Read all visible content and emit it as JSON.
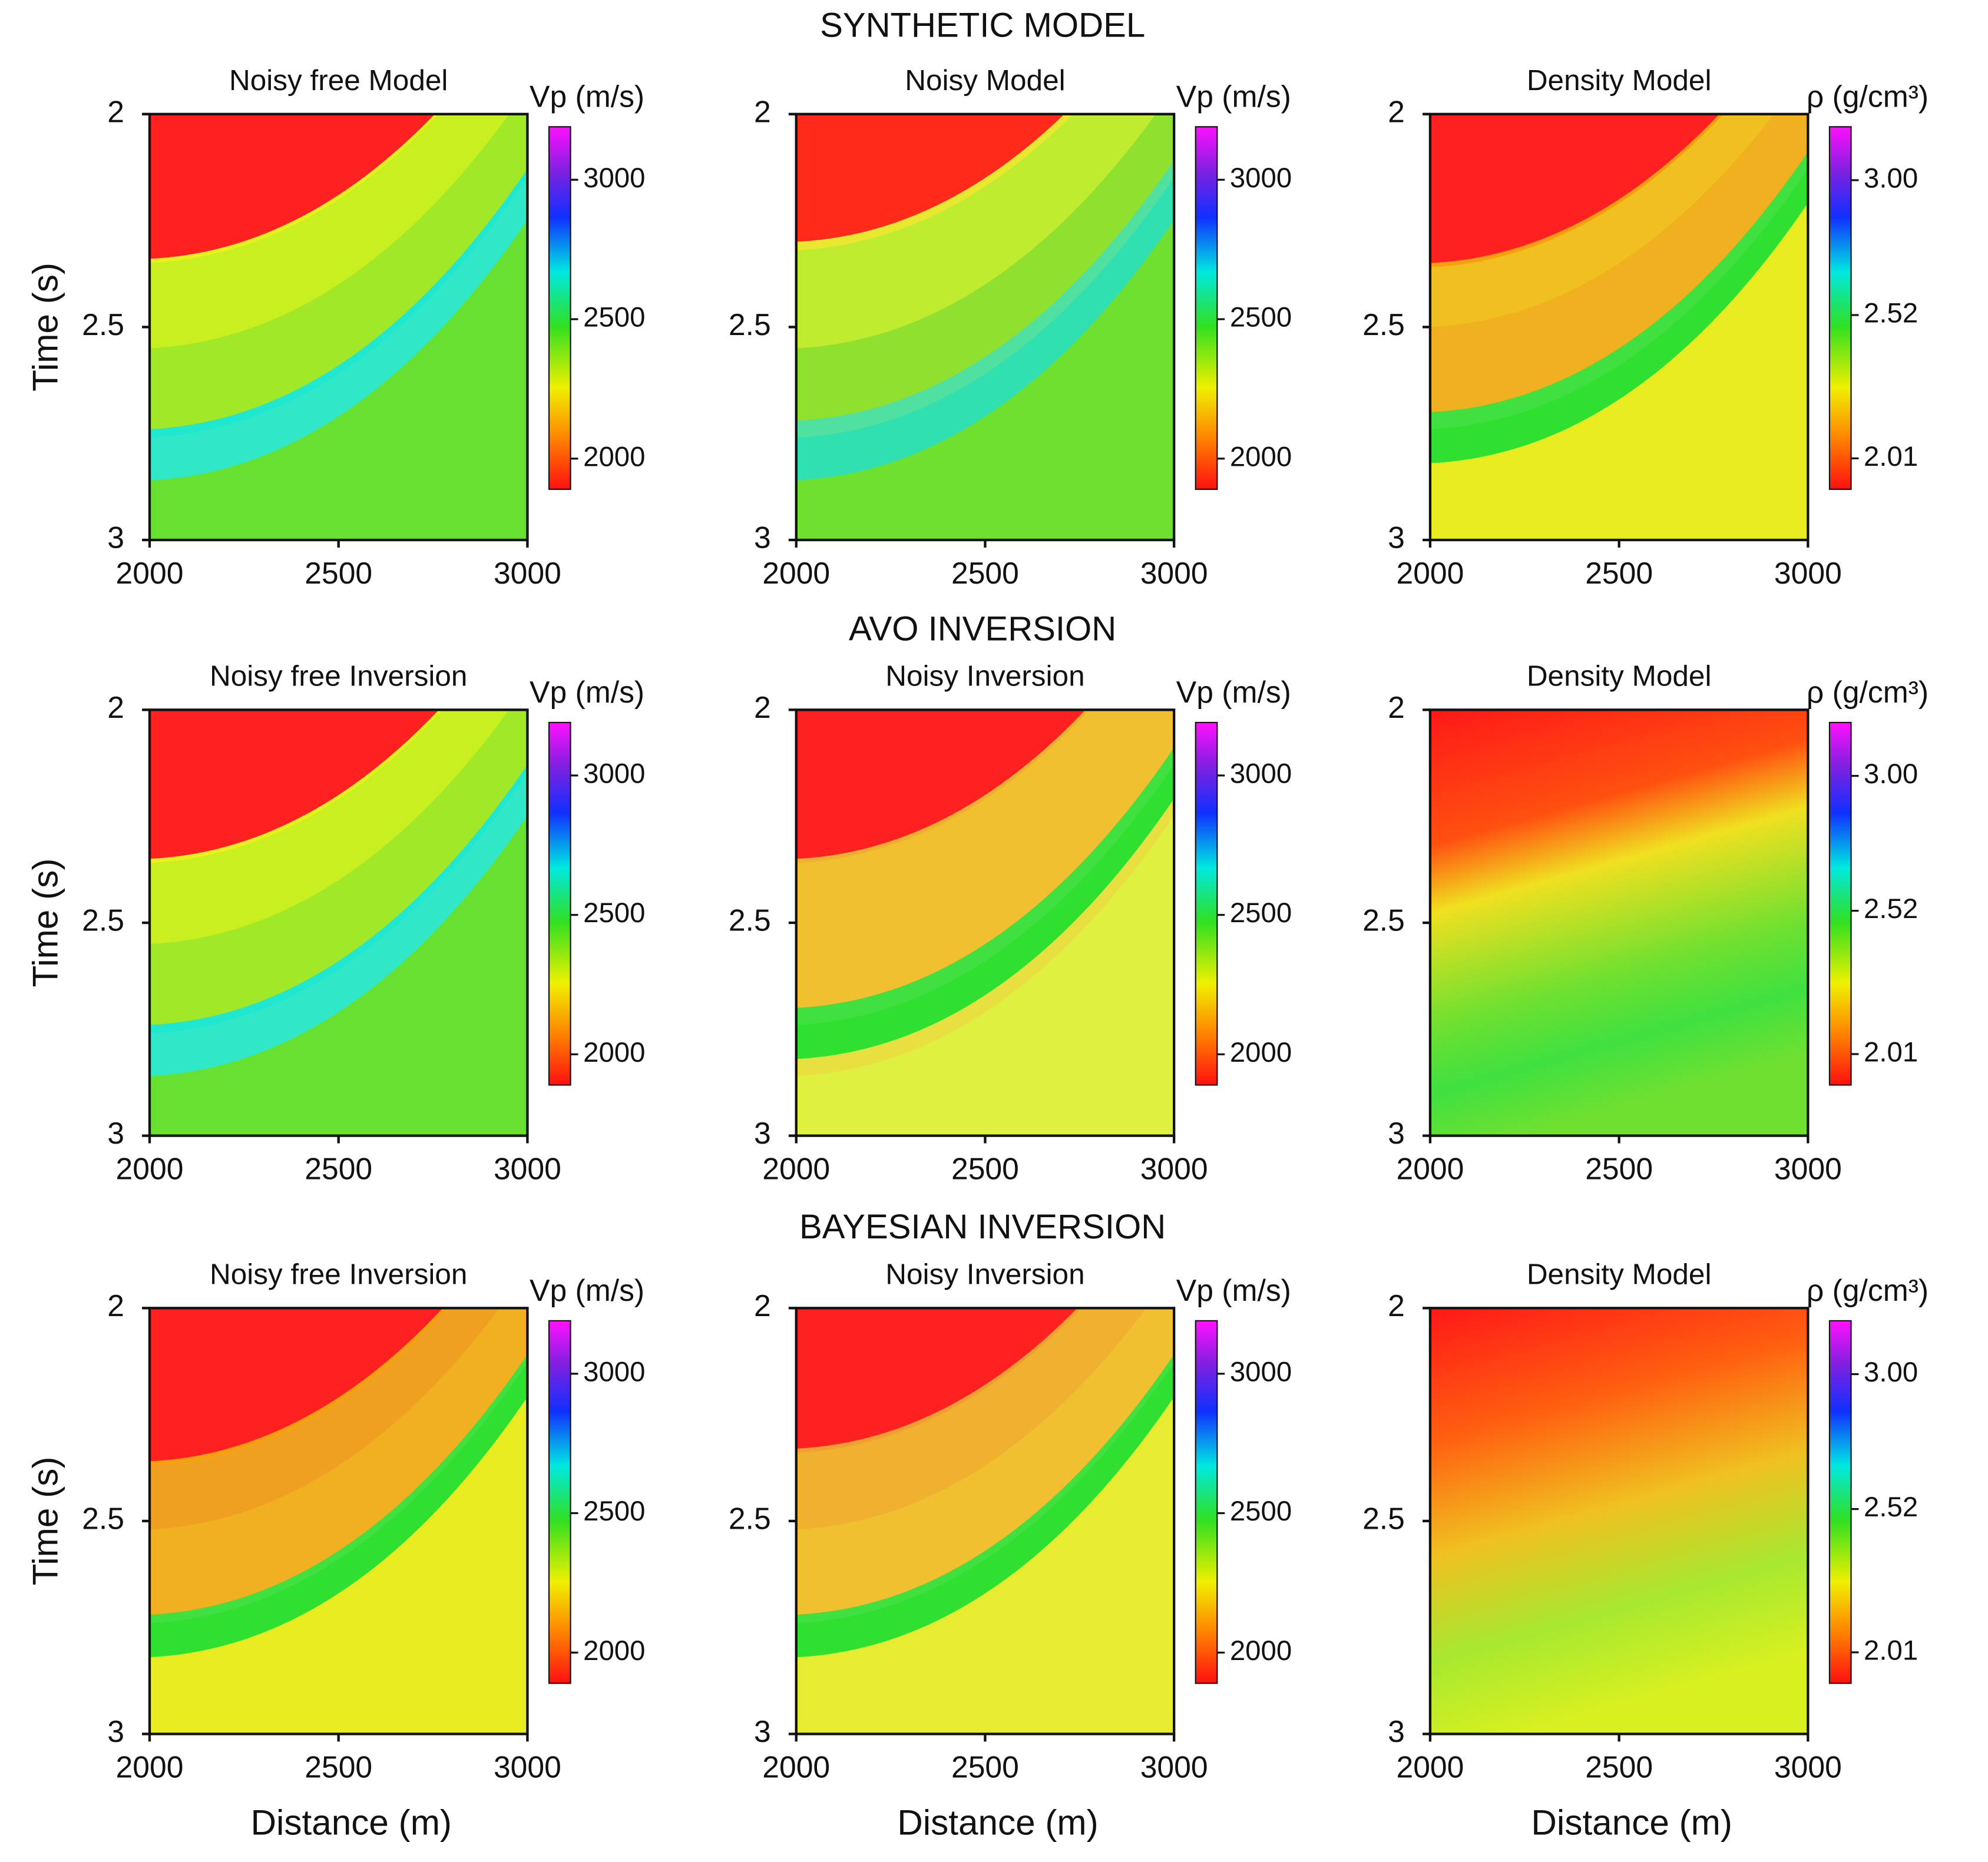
{
  "figure_titles": [
    "SYNTHETIC MODEL",
    "AVO INVERSION",
    "BAYESIAN INVERSION"
  ],
  "chart_data": [
    {
      "type": "heatmap",
      "title": "Noisy free Model",
      "ylabel": "Time (s)",
      "xlim": [
        2000,
        3000
      ],
      "xticks": [
        2000,
        2500,
        3000
      ],
      "ylim": [
        2,
        3
      ],
      "y_reversed": true,
      "yticks": [
        2,
        2.5,
        3
      ],
      "colorbar": {
        "label": "Vp (m/s)",
        "lim": [
          1890,
          3190
        ],
        "ticks": [
          2000,
          2500,
          3000
        ]
      }
    },
    {
      "type": "heatmap",
      "title": "Noisy Model",
      "xlim": [
        2000,
        3000
      ],
      "xticks": [
        2000,
        2500,
        3000
      ],
      "ylim": [
        2,
        3
      ],
      "y_reversed": true,
      "yticks": [
        2,
        2.5,
        3
      ],
      "colorbar": {
        "label": "Vp (m/s)",
        "lim": [
          1890,
          3190
        ],
        "ticks": [
          2000,
          2500,
          3000
        ]
      }
    },
    {
      "type": "heatmap",
      "title": "Density Model",
      "xlim": [
        2000,
        3000
      ],
      "xticks": [
        2000,
        2500,
        3000
      ],
      "ylim": [
        2,
        3
      ],
      "y_reversed": true,
      "yticks": [
        2,
        2.5,
        3
      ],
      "colorbar": {
        "label": "ρ (g/cm³)",
        "lim": [
          1.9,
          3.19
        ],
        "ticks": [
          {
            "value": 3,
            "label": "3.00"
          },
          2.52,
          2.01
        ]
      }
    },
    {
      "type": "heatmap",
      "title": "Noisy free Inversion",
      "ylabel": "Time (s)",
      "xlim": [
        2000,
        3000
      ],
      "xticks": [
        2000,
        2500,
        3000
      ],
      "ylim": [
        2,
        3
      ],
      "y_reversed": true,
      "yticks": [
        2,
        2.5,
        3
      ],
      "colorbar": {
        "label": "Vp (m/s)",
        "lim": [
          1890,
          3190
        ],
        "ticks": [
          2000,
          2500,
          3000
        ]
      }
    },
    {
      "type": "heatmap",
      "title": "Noisy Inversion",
      "xlim": [
        2000,
        3000
      ],
      "xticks": [
        2000,
        2500,
        3000
      ],
      "ylim": [
        2,
        3
      ],
      "y_reversed": true,
      "yticks": [
        2,
        2.5,
        3
      ],
      "colorbar": {
        "label": "Vp (m/s)",
        "lim": [
          1890,
          3190
        ],
        "ticks": [
          2000,
          2500,
          3000
        ]
      }
    },
    {
      "type": "heatmap",
      "title": "Density Model",
      "xlim": [
        2000,
        3000
      ],
      "xticks": [
        2000,
        2500,
        3000
      ],
      "ylim": [
        2,
        3
      ],
      "y_reversed": true,
      "yticks": [
        2,
        2.5,
        3
      ],
      "colorbar": {
        "label": "ρ (g/cm³)",
        "lim": [
          1.9,
          3.19
        ],
        "ticks": [
          {
            "value": 3,
            "label": "3.00"
          },
          2.52,
          2.01
        ]
      }
    },
    {
      "type": "heatmap",
      "title": "Noisy free Inversion",
      "ylabel": "Time (s)",
      "xlabel": "Distance (m)",
      "xlim": [
        2000,
        3000
      ],
      "xticks": [
        2000,
        2500,
        3000
      ],
      "ylim": [
        2,
        3
      ],
      "y_reversed": true,
      "yticks": [
        2,
        2.5,
        3
      ],
      "colorbar": {
        "label": "Vp (m/s)",
        "lim": [
          1890,
          3190
        ],
        "ticks": [
          2000,
          2500,
          3000
        ]
      }
    },
    {
      "type": "heatmap",
      "title": "Noisy Inversion",
      "xlabel": "Distance (m)",
      "xlim": [
        2000,
        3000
      ],
      "xticks": [
        2000,
        2500,
        3000
      ],
      "ylim": [
        2,
        3
      ],
      "y_reversed": true,
      "yticks": [
        2,
        2.5,
        3
      ],
      "colorbar": {
        "label": "Vp (m/s)",
        "lim": [
          1890,
          3190
        ],
        "ticks": [
          2000,
          2500,
          3000
        ]
      }
    },
    {
      "type": "heatmap",
      "title": "Density Model",
      "xlabel": "Distance (m)",
      "xlim": [
        2000,
        3000
      ],
      "xticks": [
        2000,
        2500,
        3000
      ],
      "ylim": [
        2,
        3
      ],
      "y_reversed": true,
      "yticks": [
        2,
        2.5,
        3
      ],
      "colorbar": {
        "label": "ρ (g/cm³)",
        "lim": [
          1.9,
          3.19
        ],
        "ticks": [
          {
            "value": 3,
            "label": "3.00"
          },
          2.52,
          2.01
        ]
      }
    }
  ]
}
